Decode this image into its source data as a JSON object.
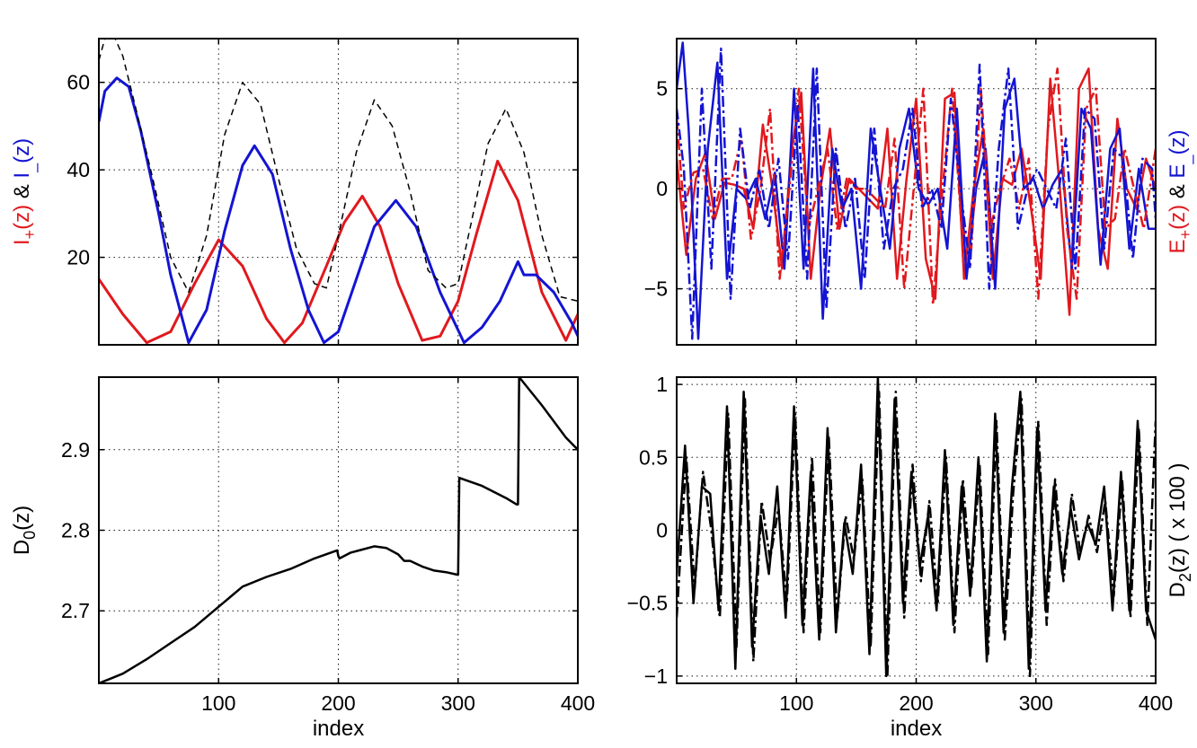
{
  "colors": {
    "red": "#e0191e",
    "blue": "#1414d2",
    "black": "#000000"
  },
  "chart_data": [
    {
      "id": "p1",
      "type": "line",
      "xlim": [
        0,
        400
      ],
      "ylim": [
        0,
        70
      ],
      "grid": true,
      "xticks": [
        100,
        200,
        300,
        400
      ],
      "xtick_labels": [
        "",
        "",
        "",
        ""
      ],
      "yticks": [
        20,
        40,
        60
      ],
      "ytick_labels": [
        "20",
        "40",
        "60"
      ],
      "xlabel": "",
      "ylabel_parts": [
        {
          "text": "I",
          "sub": "+",
          "tail": "(z)",
          "color": "red"
        },
        {
          "text": " & ",
          "color": "black"
        },
        {
          "text": "I",
          "sub": "_",
          "tail": "(z)",
          "color": "blue"
        }
      ],
      "series": [
        {
          "color": "red",
          "style": "solid",
          "width": 3,
          "x": [
            0,
            20,
            40,
            60,
            80,
            100,
            120,
            140,
            155,
            170,
            190,
            205,
            220,
            235,
            250,
            270,
            285,
            300,
            315,
            333,
            350,
            370,
            390,
            400
          ],
          "y": [
            15,
            7,
            0.5,
            3,
            14,
            24,
            18,
            6,
            0.5,
            5,
            18,
            28,
            34,
            27,
            14,
            1,
            2,
            10,
            25,
            42,
            33,
            12,
            1,
            7
          ]
        },
        {
          "color": "blue",
          "style": "solid",
          "width": 3,
          "x": [
            0,
            5,
            15,
            25,
            35,
            50,
            60,
            75,
            90,
            105,
            120,
            130,
            145,
            160,
            175,
            188,
            200,
            215,
            230,
            248,
            265,
            285,
            305,
            320,
            335,
            350,
            355,
            365,
            380,
            395,
            400
          ],
          "y": [
            51,
            58,
            61,
            59,
            49,
            30,
            16,
            0.5,
            8,
            26,
            41,
            45.5,
            39,
            22,
            8,
            0.5,
            3,
            15,
            27,
            33,
            27,
            12,
            0.5,
            4,
            10,
            19,
            16,
            16,
            12,
            5,
            2
          ]
        },
        {
          "color": "black",
          "style": "dashed",
          "width": 1.5,
          "x": [
            0,
            5,
            12,
            20,
            30,
            45,
            60,
            75,
            90,
            105,
            120,
            135,
            150,
            165,
            180,
            190,
            200,
            215,
            230,
            245,
            260,
            275,
            290,
            300,
            315,
            325,
            340,
            355,
            370,
            385,
            400
          ],
          "y": [
            65,
            70,
            71,
            66,
            55,
            38,
            20,
            12,
            25,
            48,
            60,
            55,
            38,
            22,
            14,
            13,
            25,
            44,
            56,
            50,
            35,
            17,
            13,
            14,
            33,
            46,
            54,
            44,
            25,
            11,
            10
          ]
        }
      ]
    },
    {
      "id": "p2",
      "type": "line",
      "xlim": [
        0,
        400
      ],
      "ylim": [
        -7.8,
        7.5
      ],
      "grid": true,
      "xticks": [
        100,
        200,
        300,
        400
      ],
      "xtick_labels": [
        "",
        "",
        "",
        ""
      ],
      "yticks": [
        -5,
        0,
        5
      ],
      "ytick_labels": [
        "−5",
        "0",
        "5"
      ],
      "xlabel": "",
      "ylabel_side": "right",
      "ylabel_parts": [
        {
          "text": "E",
          "sub": "+",
          "tail": "(z)",
          "color": "red"
        },
        {
          "text": " & ",
          "color": "black"
        },
        {
          "text": "E",
          "sub": "_",
          "tail": "(z)",
          "color": "blue"
        }
      ],
      "series": [
        {
          "color": "red",
          "style": "solid",
          "width": 2.5,
          "x": [
            0,
            8,
            16,
            24,
            32,
            40,
            48,
            56,
            64,
            72,
            80,
            88,
            96,
            104,
            112,
            120,
            128,
            136,
            144,
            152,
            160,
            168,
            176,
            184,
            192,
            200,
            208,
            216,
            224,
            232,
            240,
            248,
            256,
            264,
            272,
            280,
            288,
            296,
            304,
            312,
            320,
            328,
            336,
            344,
            352,
            360,
            368,
            376,
            384,
            392,
            400
          ],
          "y": [
            1.5,
            -3.3,
            0.5,
            1.8,
            -1.5,
            0.3,
            0.2,
            0,
            -2,
            3.2,
            0,
            -4,
            2,
            4.8,
            -4.5,
            0,
            3,
            -2,
            0.5,
            0,
            -0.5,
            -1,
            3,
            -4.5,
            0.5,
            4.5,
            -3.5,
            -5.5,
            4.5,
            4.8,
            -4.5,
            0,
            3,
            -4.5,
            0.5,
            0.2,
            2,
            -1,
            -4.5,
            5.5,
            0,
            -6.3,
            5,
            6,
            -2,
            -4,
            3.5,
            0,
            -1,
            1.5,
            0
          ]
        },
        {
          "color": "blue",
          "style": "solid",
          "width": 2.5,
          "x": [
            0,
            5,
            10,
            18,
            26,
            34,
            42,
            50,
            58,
            66,
            74,
            82,
            90,
            98,
            106,
            114,
            122,
            130,
            138,
            146,
            154,
            162,
            170,
            178,
            186,
            194,
            202,
            210,
            218,
            226,
            234,
            242,
            250,
            258,
            266,
            274,
            282,
            290,
            298,
            306,
            314,
            322,
            330,
            338,
            346,
            354,
            362,
            370,
            378,
            386,
            394,
            400
          ],
          "y": [
            5,
            7.3,
            3,
            -7.5,
            2,
            6.3,
            -4.5,
            0,
            -0.5,
            0.5,
            -1.5,
            0.8,
            -4,
            5,
            -4,
            6,
            -6.5,
            2,
            -1,
            0,
            -5,
            3,
            0,
            -3,
            2,
            4,
            0,
            -0.8,
            0,
            -3,
            4,
            -4.5,
            0,
            2,
            -5,
            4,
            5.5,
            0,
            0.5,
            -1,
            0.2,
            1,
            -4,
            4,
            3,
            -3.8,
            2,
            3,
            -3,
            1,
            -2,
            -2
          ]
        },
        {
          "color": "red",
          "style": "dashdot",
          "width": 2.5,
          "x": [
            0,
            6,
            14,
            22,
            30,
            38,
            46,
            54,
            62,
            70,
            78,
            86,
            94,
            102,
            110,
            118,
            126,
            134,
            142,
            150,
            158,
            166,
            174,
            182,
            190,
            198,
            206,
            214,
            222,
            230,
            238,
            246,
            254,
            262,
            270,
            278,
            286,
            294,
            302,
            310,
            318,
            326,
            334,
            342,
            350,
            358,
            366,
            374,
            382,
            390,
            400
          ],
          "y": [
            3.5,
            -1,
            0.8,
            1,
            -1.5,
            0.5,
            0.5,
            2.5,
            -2.5,
            0,
            4,
            -4.5,
            0,
            5,
            -2,
            0,
            2,
            -2,
            0.5,
            0,
            0,
            -0.5,
            -1,
            2.5,
            -5,
            0,
            5,
            -5.8,
            0,
            5,
            -2,
            -3,
            5,
            -2,
            0,
            1.5,
            -1,
            1.5,
            -5.5,
            3,
            6,
            -2,
            -5.5,
            4,
            5,
            -2,
            -1.5,
            2,
            0,
            -2,
            2
          ]
        },
        {
          "color": "blue",
          "style": "dashdot",
          "width": 2.5,
          "x": [
            0,
            6,
            13,
            21,
            29,
            37,
            45,
            53,
            61,
            69,
            77,
            85,
            93,
            101,
            109,
            117,
            125,
            133,
            141,
            149,
            157,
            165,
            173,
            181,
            189,
            197,
            205,
            213,
            221,
            229,
            237,
            245,
            253,
            261,
            269,
            277,
            285,
            293,
            301,
            309,
            317,
            325,
            333,
            341,
            349,
            357,
            365,
            373,
            381,
            389,
            397,
            400
          ],
          "y": [
            4,
            1,
            -7.5,
            5,
            -4,
            7,
            -5.5,
            3,
            -1,
            1,
            -2,
            1.5,
            -3.5,
            4.2,
            -4.5,
            6,
            -6,
            2,
            -2,
            0.5,
            -4.5,
            3,
            -3,
            0,
            1,
            4,
            -1,
            0,
            -2,
            4.5,
            0,
            -4,
            6.2,
            -5,
            2,
            6,
            -2,
            0,
            1,
            0,
            -1,
            2.5,
            -4,
            4,
            3.5,
            -3,
            2,
            1.5,
            -3.5,
            1.5,
            1,
            -1.5
          ]
        }
      ]
    },
    {
      "id": "p3",
      "type": "line",
      "xlim": [
        0,
        400
      ],
      "ylim": [
        2.61,
        2.99
      ],
      "grid": true,
      "xticks": [
        100,
        200,
        300,
        400
      ],
      "xtick_labels": [
        "100",
        "200",
        "300",
        "400"
      ],
      "yticks": [
        2.7,
        2.8,
        2.9
      ],
      "ytick_labels": [
        "2.7",
        "2.8",
        "2.9"
      ],
      "xlabel": "index",
      "ylabel_parts": [
        {
          "text": "D",
          "sub": "0",
          "tail": "(z)",
          "color": "black"
        }
      ],
      "series": [
        {
          "color": "black",
          "style": "solid",
          "width": 2.5,
          "x": [
            0,
            20,
            40,
            60,
            80,
            100,
            120,
            140,
            160,
            180,
            199,
            200,
            201,
            210,
            220,
            230,
            240,
            250,
            255,
            260,
            270,
            280,
            290,
            299,
            300,
            301,
            320,
            340,
            349,
            350,
            351,
            370,
            390,
            400
          ],
          "y": [
            2.61,
            2.622,
            2.64,
            2.66,
            2.68,
            2.705,
            2.73,
            2.742,
            2.752,
            2.765,
            2.775,
            2.768,
            2.765,
            2.772,
            2.776,
            2.78,
            2.778,
            2.77,
            2.762,
            2.762,
            2.755,
            2.75,
            2.748,
            2.745,
            2.745,
            2.865,
            2.855,
            2.84,
            2.832,
            2.832,
            2.99,
            2.955,
            2.915,
            2.9
          ]
        }
      ]
    },
    {
      "id": "p4",
      "type": "line",
      "xlim": [
        0,
        400
      ],
      "ylim": [
        -1.05,
        1.05
      ],
      "grid": true,
      "xticks": [
        100,
        200,
        300,
        400
      ],
      "xtick_labels": [
        "100",
        "200",
        "300",
        "400"
      ],
      "yticks": [
        -1,
        -0.5,
        0,
        0.5,
        1
      ],
      "ytick_labels": [
        "−1",
        "−0.5",
        "0",
        "0.5",
        "1"
      ],
      "xlabel": "index",
      "ylabel_side": "right",
      "ylabel_parts": [
        {
          "text": "D",
          "sub": "2",
          "tail": "(z) ( x 100 )",
          "color": "black"
        }
      ],
      "series": [
        {
          "color": "black",
          "style": "solid",
          "width": 2.5,
          "x": [
            0,
            7,
            14,
            21,
            28,
            35,
            42,
            49,
            56,
            63,
            70,
            77,
            84,
            91,
            98,
            105,
            112,
            119,
            126,
            133,
            140,
            147,
            154,
            161,
            168,
            175,
            182,
            189,
            196,
            203,
            210,
            217,
            224,
            231,
            238,
            245,
            252,
            259,
            266,
            273,
            280,
            287,
            294,
            301,
            308,
            315,
            322,
            329,
            336,
            343,
            350,
            357,
            364,
            371,
            378,
            385,
            392,
            400
          ],
          "y": [
            -0.3,
            0.58,
            -0.5,
            0.3,
            0.25,
            -0.55,
            0.85,
            -0.95,
            0.95,
            -0.8,
            0.1,
            -0.3,
            0.3,
            -0.6,
            0.85,
            -0.65,
            0.4,
            -0.75,
            0.7,
            -0.7,
            0.05,
            -0.3,
            0.45,
            -0.85,
            1.05,
            -1,
            0.9,
            -0.5,
            0.4,
            -0.25,
            0.1,
            -0.55,
            0.55,
            -0.65,
            0.3,
            -0.45,
            0.5,
            -0.9,
            0.8,
            -0.7,
            0.3,
            0.95,
            -0.95,
            0.7,
            -0.55,
            0.3,
            -0.3,
            0.15,
            -0.2,
            0.05,
            -0.1,
            0.3,
            -0.55,
            0.4,
            -0.55,
            0.75,
            -0.55,
            -0.75
          ]
        },
        {
          "color": "black",
          "style": "dashdot",
          "width": 2.5,
          "x": [
            0,
            8,
            15,
            22,
            29,
            36,
            43,
            50,
            57,
            64,
            71,
            78,
            85,
            92,
            99,
            106,
            113,
            120,
            127,
            134,
            141,
            148,
            155,
            162,
            169,
            176,
            183,
            190,
            197,
            204,
            211,
            218,
            225,
            232,
            239,
            246,
            253,
            260,
            267,
            274,
            281,
            288,
            295,
            302,
            309,
            316,
            323,
            330,
            337,
            344,
            351,
            358,
            365,
            372,
            379,
            386,
            393,
            400
          ],
          "y": [
            -0.6,
            0.5,
            -0.4,
            0.4,
            0,
            -0.6,
            0.8,
            -0.8,
            0.9,
            -0.9,
            0.2,
            -0.2,
            0.15,
            -0.5,
            0.8,
            -0.7,
            0.5,
            -0.7,
            0.65,
            -0.6,
            0.1,
            -0.2,
            0.35,
            -0.8,
            0.95,
            -1,
            0.95,
            -0.6,
            0.45,
            -0.35,
            0.2,
            -0.5,
            0.5,
            -0.7,
            0.35,
            -0.4,
            0.45,
            -0.85,
            0.75,
            -0.75,
            0.25,
            0.9,
            -1,
            0.75,
            -0.65,
            0.35,
            -0.35,
            0.25,
            -0.15,
            0.1,
            -0.15,
            0.2,
            -0.45,
            0.35,
            -0.6,
            0.7,
            -0.65,
            0.75
          ]
        }
      ]
    }
  ]
}
